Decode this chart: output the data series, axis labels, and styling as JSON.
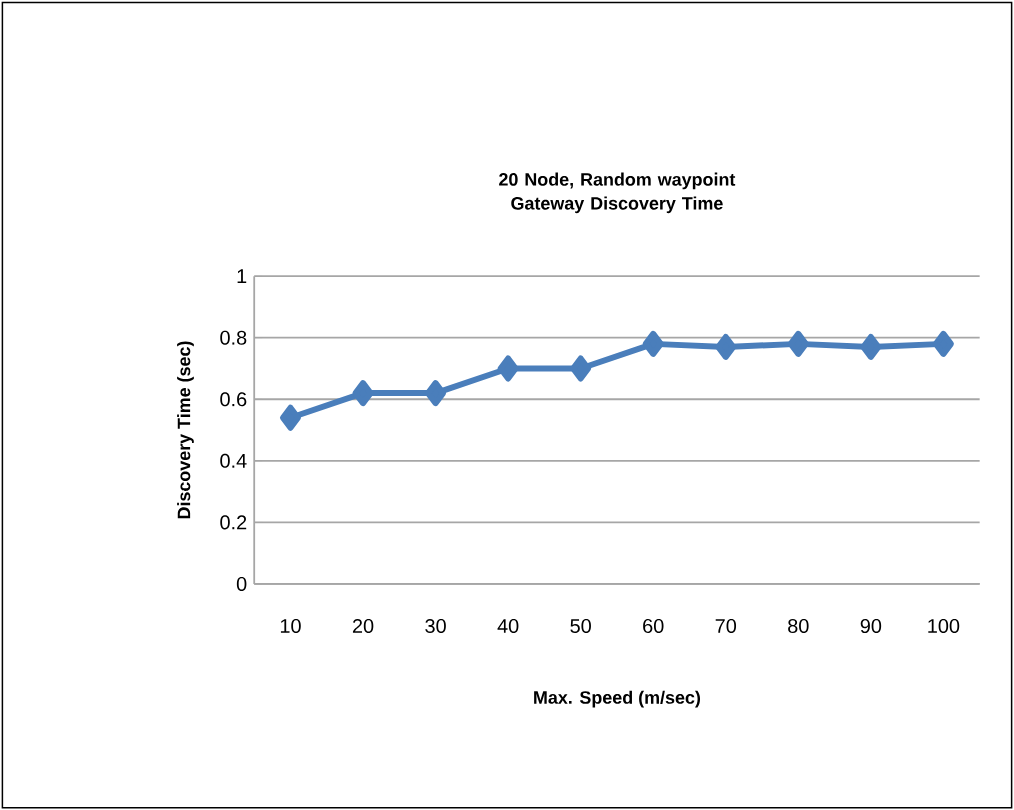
{
  "chart_data": {
    "type": "line",
    "title": "20 Node, Random waypoint Gateway Discovery Time",
    "xlabel": "Max. Speed  (m/sec)",
    "ylabel": "Discovery Time (sec)",
    "categories": [
      "10",
      "20",
      "30",
      "40",
      "50",
      "60",
      "70",
      "80",
      "90",
      "100"
    ],
    "series": [
      {
        "color": "#4a7ebb",
        "values": [
          0.54,
          0.62,
          0.62,
          0.7,
          0.7,
          0.78,
          0.77,
          0.78,
          0.77,
          0.78
        ]
      }
    ],
    "ylim": [
      0,
      1
    ],
    "yticks": [
      0,
      0.2,
      0.4,
      0.6,
      0.8,
      1
    ],
    "grid": "y",
    "marker": "diamond",
    "line_style": "solid",
    "legend": false
  }
}
